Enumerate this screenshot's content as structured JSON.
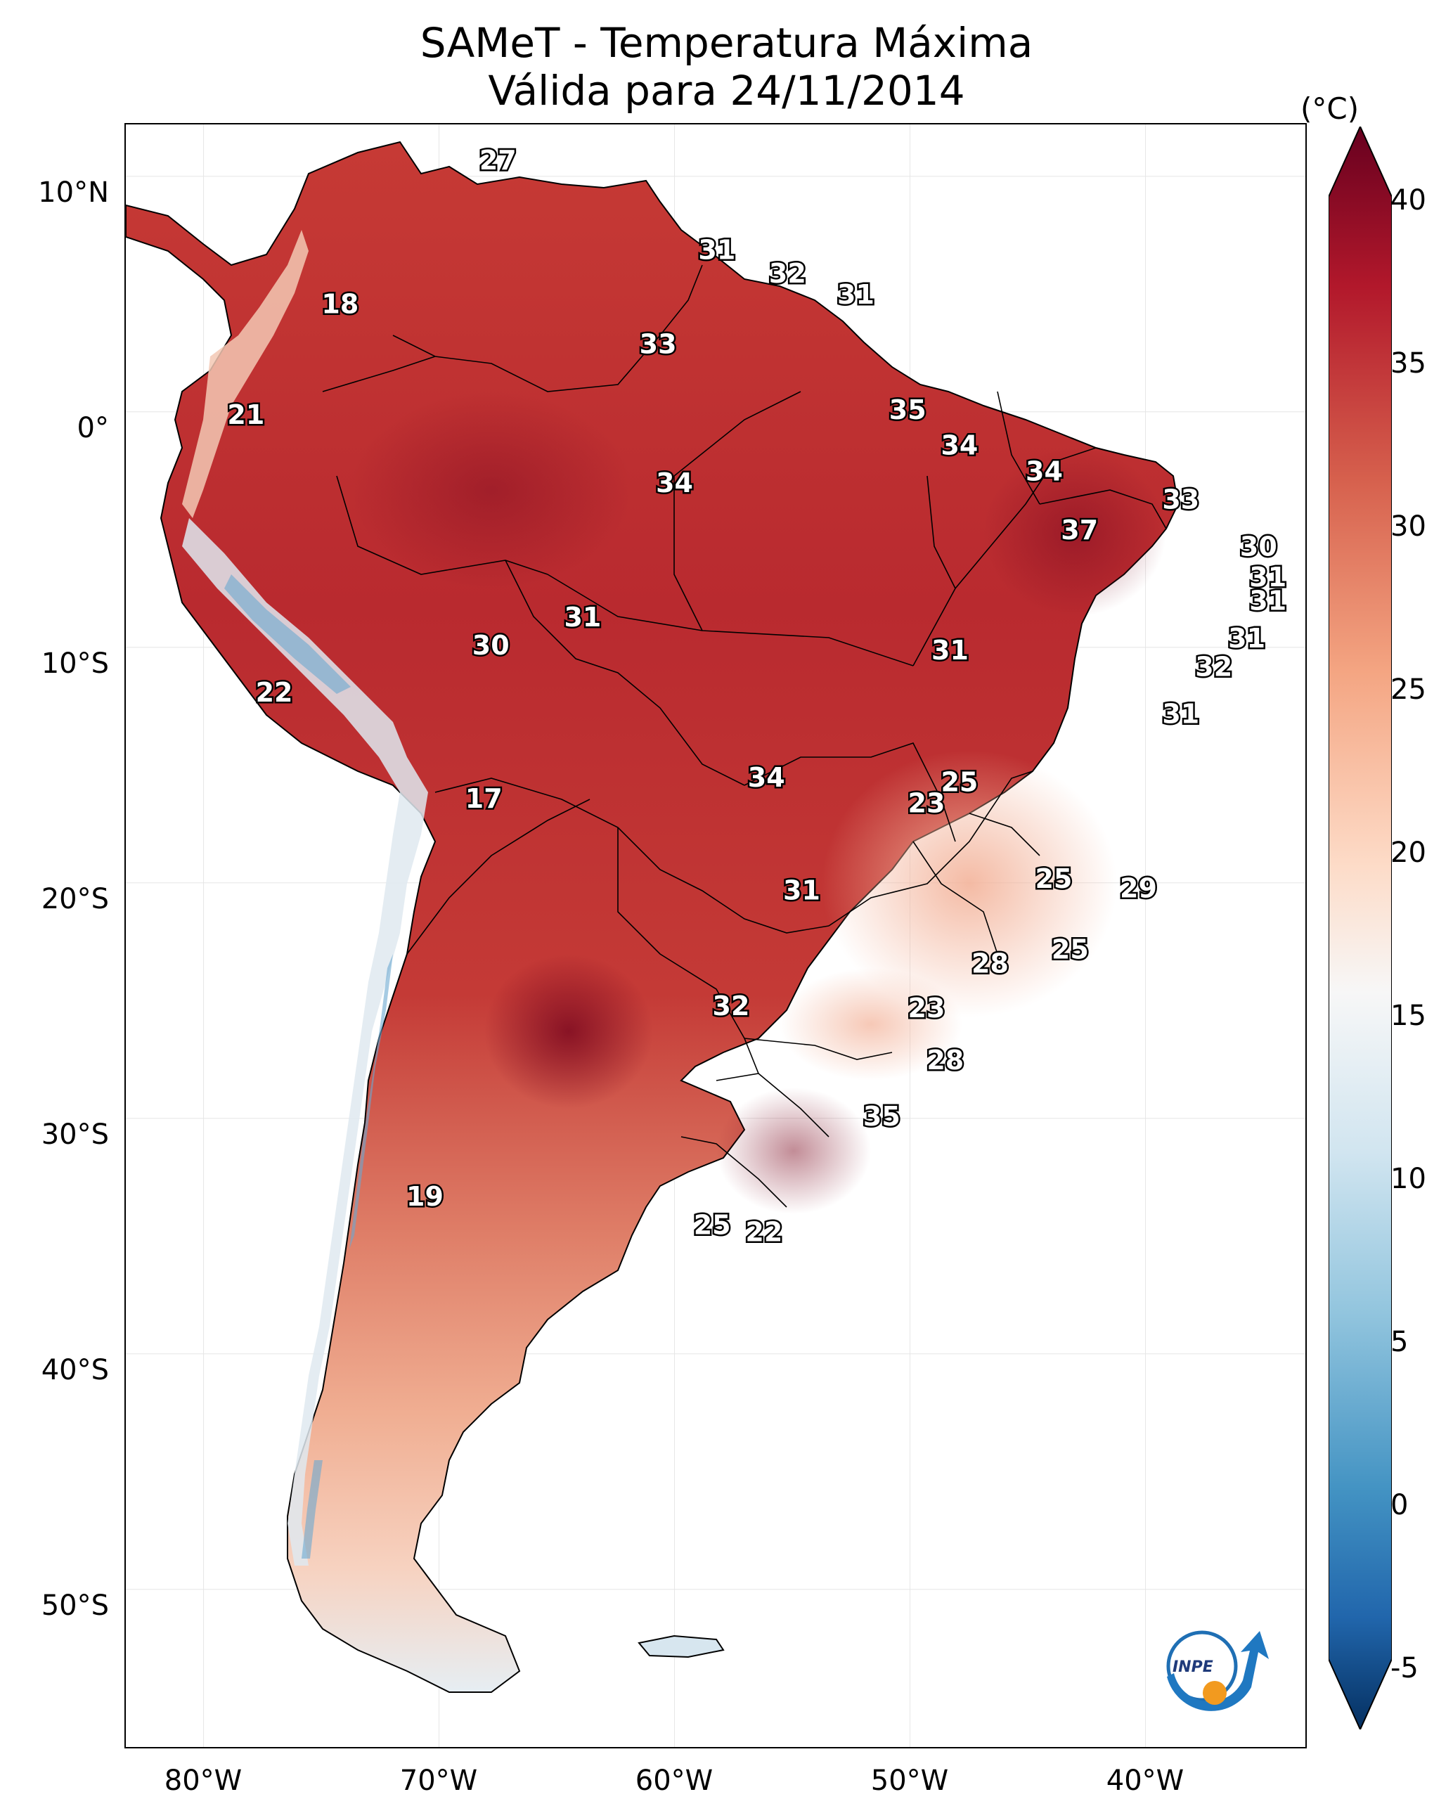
{
  "title": {
    "line1": "SAMeT - Temperatura Máxima",
    "line2": "Válida para 24/11/2014"
  },
  "colorbar": {
    "unit": "(°C)",
    "ticks": [
      "40",
      "35",
      "30",
      "25",
      "20",
      "15",
      "10",
      "5",
      "0",
      "-5"
    ],
    "colors": [
      "#67001f",
      "#b2182b",
      "#d6604d",
      "#f4a582",
      "#fddbc7",
      "#f7f7f7",
      "#d1e5f0",
      "#92c5de",
      "#4393c3",
      "#2166ac",
      "#053061"
    ]
  },
  "axes": {
    "lat_labels": [
      "10°N",
      "0°",
      "10°S",
      "20°S",
      "30°S",
      "40°S",
      "50°S"
    ],
    "lon_labels": [
      "80°W",
      "70°W",
      "60°W",
      "50°W",
      "40°W"
    ]
  },
  "stations": [
    {
      "label": "27",
      "lon": -67.5,
      "lat": 10.6
    },
    {
      "label": "18",
      "lon": -74.2,
      "lat": 4.5
    },
    {
      "label": "21",
      "lon": -78.2,
      "lat": -0.2
    },
    {
      "label": "31",
      "lon": -58.2,
      "lat": 6.8
    },
    {
      "label": "32",
      "lon": -55.2,
      "lat": 5.8
    },
    {
      "label": "31",
      "lon": -52.3,
      "lat": 4.9
    },
    {
      "label": "33",
      "lon": -60.7,
      "lat": 2.8
    },
    {
      "label": "35",
      "lon": -50.1,
      "lat": 0.0
    },
    {
      "label": "34",
      "lon": -47.9,
      "lat": -1.5
    },
    {
      "label": "34",
      "lon": -60.0,
      "lat": -3.1
    },
    {
      "label": "34",
      "lon": -44.3,
      "lat": -2.6
    },
    {
      "label": "33",
      "lon": -38.5,
      "lat": -3.8
    },
    {
      "label": "37",
      "lon": -42.8,
      "lat": -5.1
    },
    {
      "label": "30",
      "lon": -35.2,
      "lat": -5.8
    },
    {
      "label": "31",
      "lon": -34.8,
      "lat": -7.1
    },
    {
      "label": "31",
      "lon": -34.8,
      "lat": -8.1
    },
    {
      "label": "31",
      "lon": -63.9,
      "lat": -8.8
    },
    {
      "label": "30",
      "lon": -67.8,
      "lat": -10.0
    },
    {
      "label": "31",
      "lon": -48.3,
      "lat": -10.2
    },
    {
      "label": "31",
      "lon": -35.7,
      "lat": -9.7
    },
    {
      "label": "32",
      "lon": -37.1,
      "lat": -10.9
    },
    {
      "label": "22",
      "lon": -77.0,
      "lat": -12.0
    },
    {
      "label": "31",
      "lon": -38.5,
      "lat": -12.9
    },
    {
      "label": "25",
      "lon": -47.9,
      "lat": -15.8
    },
    {
      "label": "17",
      "lon": -68.1,
      "lat": -16.5
    },
    {
      "label": "34",
      "lon": -56.1,
      "lat": -15.6
    },
    {
      "label": "23",
      "lon": -49.3,
      "lat": -16.7
    },
    {
      "label": "25",
      "lon": -43.9,
      "lat": -19.9
    },
    {
      "label": "31",
      "lon": -54.6,
      "lat": -20.4
    },
    {
      "label": "29",
      "lon": -40.3,
      "lat": -20.3
    },
    {
      "label": "25",
      "lon": -43.2,
      "lat": -22.9
    },
    {
      "label": "28",
      "lon": -46.6,
      "lat": -23.5
    },
    {
      "label": "32",
      "lon": -57.6,
      "lat": -25.3
    },
    {
      "label": "23",
      "lon": -49.3,
      "lat": -25.4
    },
    {
      "label": "28",
      "lon": -48.5,
      "lat": -27.6
    },
    {
      "label": "35",
      "lon": -51.2,
      "lat": -30.0
    },
    {
      "label": "19",
      "lon": -70.6,
      "lat": -33.4
    },
    {
      "label": "25",
      "lon": -58.4,
      "lat": -34.6
    },
    {
      "label": "22",
      "lon": -56.2,
      "lat": -34.9
    }
  ]
}
